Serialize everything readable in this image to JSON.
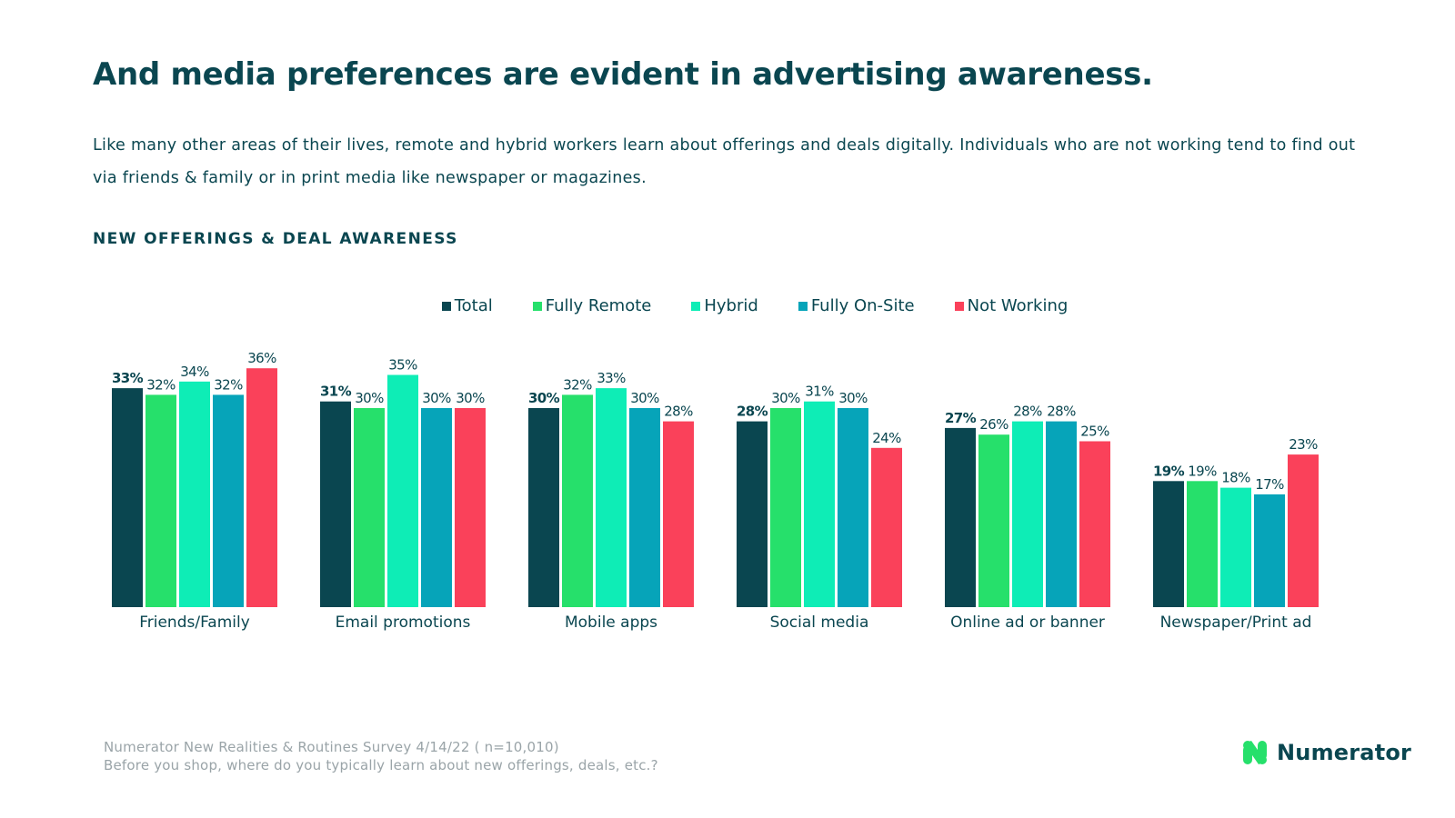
{
  "title": "And media preferences are evident in advertising awareness.",
  "subtitle": "Like many other areas of their lives, remote and hybrid workers learn about offerings and deals digitally. Individuals who are not working tend to find out via friends & family or in print media like newspaper or magazines.",
  "section_label": "NEW OFFERINGS & DEAL AWARENESS",
  "footnote": {
    "line1": "Numerator New Realities & Routines Survey 4/14/22 ( n=10,010)",
    "line2": "Before you shop, where do you typically learn about new offerings, deals, etc.?"
  },
  "brand": {
    "name": "Numerator",
    "logo_icon": "numerator-logo-icon"
  },
  "chart_data": {
    "type": "bar",
    "title": "NEW OFFERINGS & DEAL AWARENESS",
    "xlabel": "",
    "ylabel": "",
    "ylim": [
      0,
      40
    ],
    "grid": false,
    "legend_position": "top-center",
    "value_format": "percent",
    "categories": [
      "Friends/Family",
      "Email promotions",
      "Mobile apps",
      "Social media",
      "Online ad or banner",
      "Newspaper/Print ad"
    ],
    "series": [
      {
        "name": "Total",
        "color": "#0a4650",
        "bold_labels": true,
        "values": [
          33,
          31,
          30,
          28,
          27,
          19
        ]
      },
      {
        "name": "Fully Remote",
        "color": "#26e06b",
        "values": [
          32,
          30,
          32,
          30,
          26,
          19
        ]
      },
      {
        "name": "Hybrid",
        "color": "#0eedb6",
        "values": [
          34,
          35,
          33,
          31,
          28,
          18
        ]
      },
      {
        "name": "Fully On-Site",
        "color": "#06a4b9",
        "values": [
          32,
          30,
          30,
          30,
          28,
          17
        ]
      },
      {
        "name": "Not Working",
        "color": "#fa415a",
        "values": [
          36,
          30,
          28,
          24,
          25,
          23
        ]
      }
    ]
  }
}
